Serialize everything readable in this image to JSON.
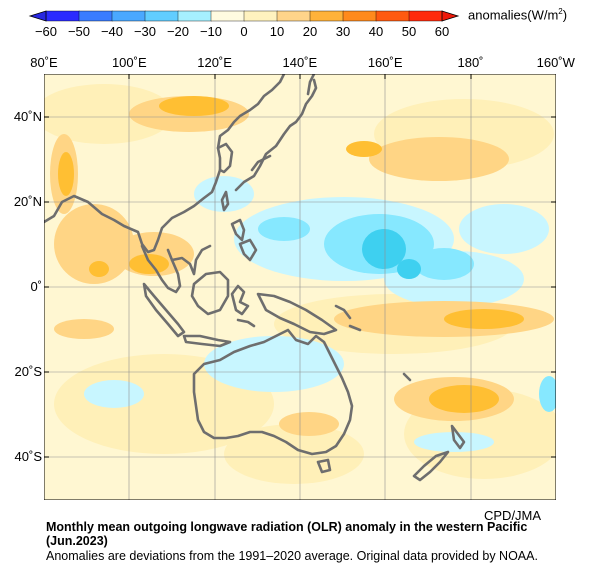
{
  "colorbar": {
    "labels": [
      "−60",
      "−50",
      "−40",
      "−30",
      "−20",
      "−10",
      "0",
      "10",
      "20",
      "30",
      "40",
      "50",
      "60"
    ],
    "unit": "anomalies(W/m",
    "unit_sup": "2",
    "unit_close": ")",
    "colors": [
      "#2b2bff",
      "#3a7cff",
      "#4aa8ff",
      "#61cdff",
      "#a6f0ff",
      "#fffbe0",
      "#fff2bf",
      "#ffd48a",
      "#ffb23a",
      "#ff8a1c",
      "#ff5a10",
      "#ff2b0c"
    ]
  },
  "axes": {
    "x_ticks": [
      "80˚E",
      "100˚E",
      "120˚E",
      "140˚E",
      "160˚E",
      "180˚",
      "160˚W"
    ],
    "y_ticks": [
      "40˚N",
      "20˚N",
      "0˚",
      "20˚S",
      "40˚S"
    ]
  },
  "credit": "CPD/JMA",
  "caption": {
    "title": "Monthly mean outgoing longwave radiation (OLR) anomaly in the western Pacific (Jun.2023)",
    "note": "Anomalies are deviations from the 1991–2020 average. Original data provided by NOAA."
  },
  "map": {
    "region": "western Pacific",
    "lon_range": [
      "80E",
      "160W"
    ],
    "lat_range": [
      "50N",
      "50S"
    ],
    "positive_anomaly_color": "#ffc44a",
    "negative_anomaly_color": "#3ed0f0",
    "coastline_color": "#6e6e6e"
  }
}
